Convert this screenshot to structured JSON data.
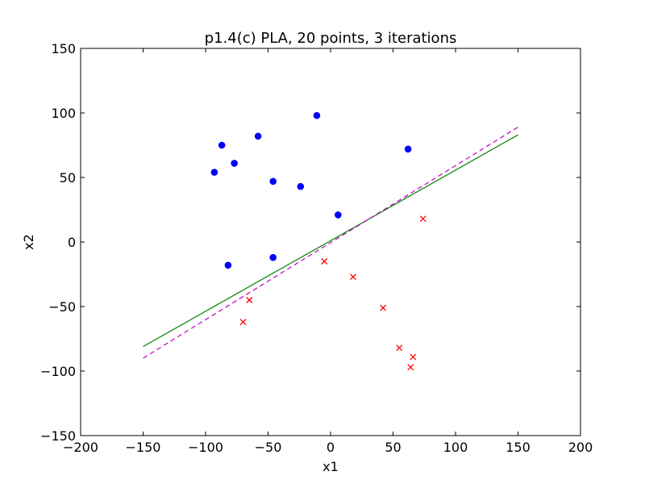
{
  "chart_data": {
    "type": "scatter",
    "title": "p1.4(c)  PLA, 20 points, 3 iterations",
    "xlabel": "x1",
    "ylabel": "x2",
    "xlim": [
      -200,
      200
    ],
    "ylim": [
      -150,
      150
    ],
    "xticks": [
      -200,
      -150,
      -100,
      -50,
      0,
      50,
      100,
      150,
      200
    ],
    "yticks": [
      -150,
      -100,
      -50,
      0,
      50,
      100,
      150
    ],
    "xtick_labels": [
      "−200",
      "−150",
      "−100",
      "−50",
      "0",
      "50",
      "100",
      "150",
      "200"
    ],
    "ytick_labels": [
      "−150",
      "−100",
      "−50",
      "0",
      "50",
      "100",
      "150"
    ],
    "grid": false,
    "colors": {
      "positive": "#0000ff",
      "negative": "#ff0000",
      "solid_line": "#008000",
      "dashed_line": "#bf00bf"
    },
    "series": [
      {
        "marker": "circle",
        "color": "#0000ff",
        "points": [
          [
            -87,
            75
          ],
          [
            -93,
            54
          ],
          [
            -77,
            61
          ],
          [
            -58,
            82
          ],
          [
            -46,
            47
          ],
          [
            -11,
            98
          ],
          [
            -24,
            43
          ],
          [
            62,
            72
          ],
          [
            6,
            21
          ],
          [
            -82,
            -18
          ],
          [
            -46,
            -12
          ]
        ]
      },
      {
        "marker": "x",
        "color": "#ff0000",
        "points": [
          [
            -65,
            -45
          ],
          [
            -70,
            -62
          ],
          [
            -5,
            -15
          ],
          [
            18,
            -27
          ],
          [
            42,
            -51
          ],
          [
            55,
            -82
          ],
          [
            66,
            -89
          ],
          [
            64,
            -97
          ],
          [
            74,
            18
          ]
        ]
      }
    ],
    "lines": [
      {
        "style": "solid",
        "color": "#008000",
        "x": [
          -150,
          150
        ],
        "y": [
          -81,
          83
        ]
      },
      {
        "style": "dashed",
        "color": "#bf00bf",
        "x": [
          -150,
          150
        ],
        "y": [
          -90,
          89
        ]
      }
    ]
  }
}
